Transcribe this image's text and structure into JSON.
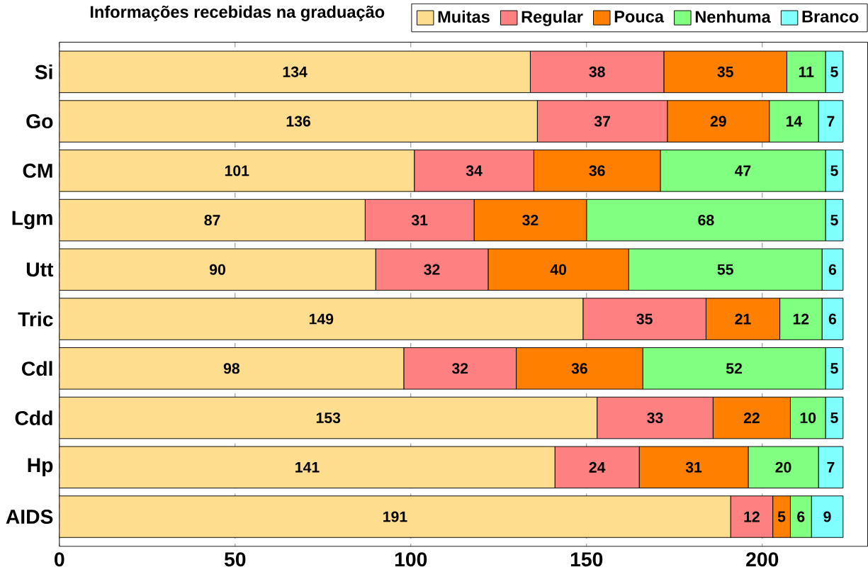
{
  "chart_data": {
    "type": "bar",
    "orientation": "horizontal",
    "stacked": true,
    "title": "Informações recebidas na graduação",
    "categories": [
      "Si",
      "Go",
      "CM",
      "Lgm",
      "Utt",
      "Tric",
      "Cdl",
      "Cdd",
      "Hp",
      "AIDS"
    ],
    "series": [
      {
        "name": "Muitas",
        "color": "#ffdd8f",
        "values": [
          134,
          136,
          101,
          87,
          90,
          149,
          98,
          153,
          141,
          191
        ]
      },
      {
        "name": "Regular",
        "color": "#ff8080",
        "values": [
          38,
          37,
          34,
          31,
          32,
          35,
          32,
          33,
          24,
          12
        ]
      },
      {
        "name": "Pouca",
        "color": "#ff8000",
        "values": [
          35,
          29,
          36,
          32,
          40,
          21,
          36,
          22,
          31,
          5
        ]
      },
      {
        "name": "Nenhuma",
        "color": "#80ff80",
        "values": [
          11,
          14,
          47,
          68,
          55,
          12,
          52,
          10,
          20,
          6
        ]
      },
      {
        "name": "Branco",
        "color": "#80ffff",
        "values": [
          5,
          7,
          5,
          5,
          6,
          6,
          5,
          5,
          7,
          9
        ]
      }
    ],
    "xlim": [
      0,
      230
    ],
    "xticks": [
      0,
      50,
      100,
      150,
      200
    ],
    "grid": "x",
    "legend": "top right",
    "data_labels": true
  }
}
